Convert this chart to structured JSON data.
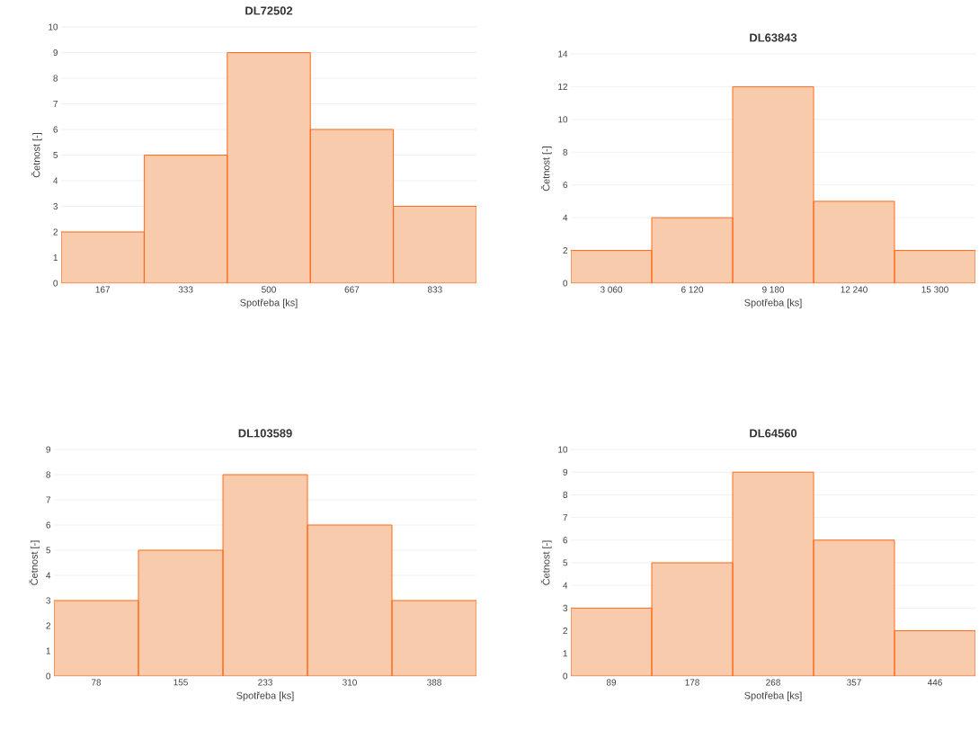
{
  "chart_data": [
    {
      "type": "bar",
      "title": "DL72502",
      "xlabel": "Spotřeba [ks]",
      "ylabel": "Četnost [-]",
      "categories": [
        "167",
        "333",
        "500",
        "667",
        "833"
      ],
      "values": [
        2,
        5,
        9,
        6,
        3
      ],
      "color": "#f8cbad",
      "ylim": [
        0,
        10
      ],
      "yticks": [
        0,
        1,
        2,
        3,
        4,
        5,
        6,
        7,
        8,
        9,
        10
      ],
      "grid": "y"
    },
    {
      "type": "bar",
      "title": "DL63843",
      "xlabel": "Spotřeba [ks]",
      "ylabel": "Četnost [-]",
      "categories": [
        "3 060",
        "6 120",
        "9 180",
        "12 240",
        "15 300"
      ],
      "values": [
        2,
        4,
        12,
        5,
        2
      ],
      "color": "#f8cbad",
      "ylim": [
        0,
        14
      ],
      "yticks": [
        0,
        2,
        4,
        6,
        8,
        10,
        12,
        14
      ],
      "grid": "y"
    },
    {
      "type": "bar",
      "title": "DL103589",
      "xlabel": "Spotřeba [ks]",
      "ylabel": "Četnost [-]",
      "categories": [
        "78",
        "155",
        "233",
        "310",
        "388"
      ],
      "values": [
        3,
        5,
        8,
        6,
        3
      ],
      "color": "#f8cbad",
      "ylim": [
        0,
        9
      ],
      "yticks": [
        0,
        1,
        2,
        3,
        4,
        5,
        6,
        7,
        8,
        9
      ],
      "grid": "y"
    },
    {
      "type": "bar",
      "title": "DL64560",
      "xlabel": "Spotřeba [ks]",
      "ylabel": "Četnost [-]",
      "categories": [
        "89",
        "178",
        "268",
        "357",
        "446"
      ],
      "values": [
        3,
        5,
        9,
        6,
        2
      ],
      "color": "#f8cbad",
      "ylim": [
        0,
        10
      ],
      "yticks": [
        0,
        1,
        2,
        3,
        4,
        5,
        6,
        7,
        8,
        9,
        10
      ],
      "grid": "y"
    }
  ]
}
